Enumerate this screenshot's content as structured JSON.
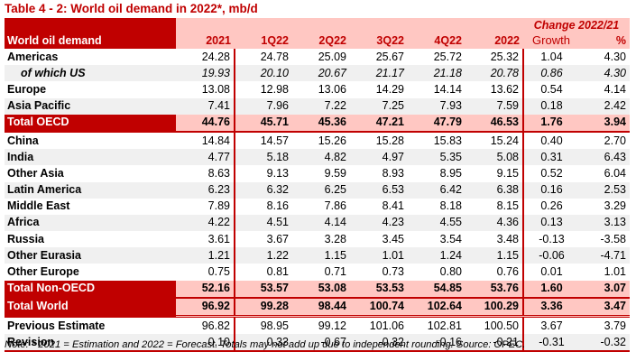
{
  "title": "Table 4 - 2: World oil demand in 2022*, mb/d",
  "header": {
    "label": "World oil demand",
    "change_group": "Change 2022/21",
    "columns": [
      "2021",
      "1Q22",
      "2Q22",
      "3Q22",
      "4Q22",
      "2022",
      "Growth",
      "%"
    ]
  },
  "rows": [
    {
      "label": "Americas",
      "values": [
        "24.28",
        "24.78",
        "25.09",
        "25.67",
        "25.72",
        "25.32",
        "1.04",
        "4.30"
      ]
    },
    {
      "label": "of which US",
      "values": [
        "19.93",
        "20.10",
        "20.67",
        "21.17",
        "21.18",
        "20.78",
        "0.86",
        "4.30"
      ]
    },
    {
      "label": "Europe",
      "values": [
        "13.08",
        "12.98",
        "13.06",
        "14.29",
        "14.14",
        "13.62",
        "0.54",
        "4.14"
      ]
    },
    {
      "label": "Asia Pacific",
      "values": [
        "7.41",
        "7.96",
        "7.22",
        "7.25",
        "7.93",
        "7.59",
        "0.18",
        "2.42"
      ]
    },
    {
      "label": "Total OECD",
      "values": [
        "44.76",
        "45.71",
        "45.36",
        "47.21",
        "47.79",
        "46.53",
        "1.76",
        "3.94"
      ]
    },
    {
      "label": "China",
      "values": [
        "14.84",
        "14.57",
        "15.26",
        "15.28",
        "15.83",
        "15.24",
        "0.40",
        "2.70"
      ]
    },
    {
      "label": "India",
      "values": [
        "4.77",
        "5.18",
        "4.82",
        "4.97",
        "5.35",
        "5.08",
        "0.31",
        "6.43"
      ]
    },
    {
      "label": "Other Asia",
      "values": [
        "8.63",
        "9.13",
        "9.59",
        "8.93",
        "8.95",
        "9.15",
        "0.52",
        "6.04"
      ]
    },
    {
      "label": "Latin America",
      "values": [
        "6.23",
        "6.32",
        "6.25",
        "6.53",
        "6.42",
        "6.38",
        "0.16",
        "2.53"
      ]
    },
    {
      "label": "Middle East",
      "values": [
        "7.89",
        "8.16",
        "7.86",
        "8.41",
        "8.18",
        "8.15",
        "0.26",
        "3.29"
      ]
    },
    {
      "label": "Africa",
      "values": [
        "4.22",
        "4.51",
        "4.14",
        "4.23",
        "4.55",
        "4.36",
        "0.13",
        "3.13"
      ]
    },
    {
      "label": "Russia",
      "values": [
        "3.61",
        "3.67",
        "3.28",
        "3.45",
        "3.54",
        "3.48",
        "-0.13",
        "-3.58"
      ]
    },
    {
      "label": "Other Eurasia",
      "values": [
        "1.21",
        "1.22",
        "1.15",
        "1.01",
        "1.24",
        "1.15",
        "-0.06",
        "-4.71"
      ]
    },
    {
      "label": "Other Europe",
      "values": [
        "0.75",
        "0.81",
        "0.71",
        "0.73",
        "0.80",
        "0.76",
        "0.01",
        "1.01"
      ]
    },
    {
      "label": "Total Non-OECD",
      "values": [
        "52.16",
        "53.57",
        "53.08",
        "53.53",
        "54.85",
        "53.76",
        "1.60",
        "3.07"
      ]
    },
    {
      "label": "Total World",
      "values": [
        "96.92",
        "99.28",
        "98.44",
        "100.74",
        "102.64",
        "100.29",
        "3.36",
        "3.47"
      ]
    },
    {
      "label": "Previous Estimate",
      "values": [
        "96.82",
        "98.95",
        "99.12",
        "101.06",
        "102.81",
        "100.50",
        "3.67",
        "3.79"
      ]
    },
    {
      "label": "Revision",
      "values": [
        "0.10",
        "0.33",
        "-0.67",
        "-0.32",
        "-0.16",
        "-0.21",
        "-0.31",
        "-0.32"
      ]
    }
  ],
  "note": "Note: * 2021 = Estimation and 2022 = Forecast. Totals may not add up due to independent rounding. Source: OPEC.",
  "colors": {
    "accent": "#c00000",
    "header_fill": "#ffc7c2",
    "stripe": "#f0f0f0"
  }
}
